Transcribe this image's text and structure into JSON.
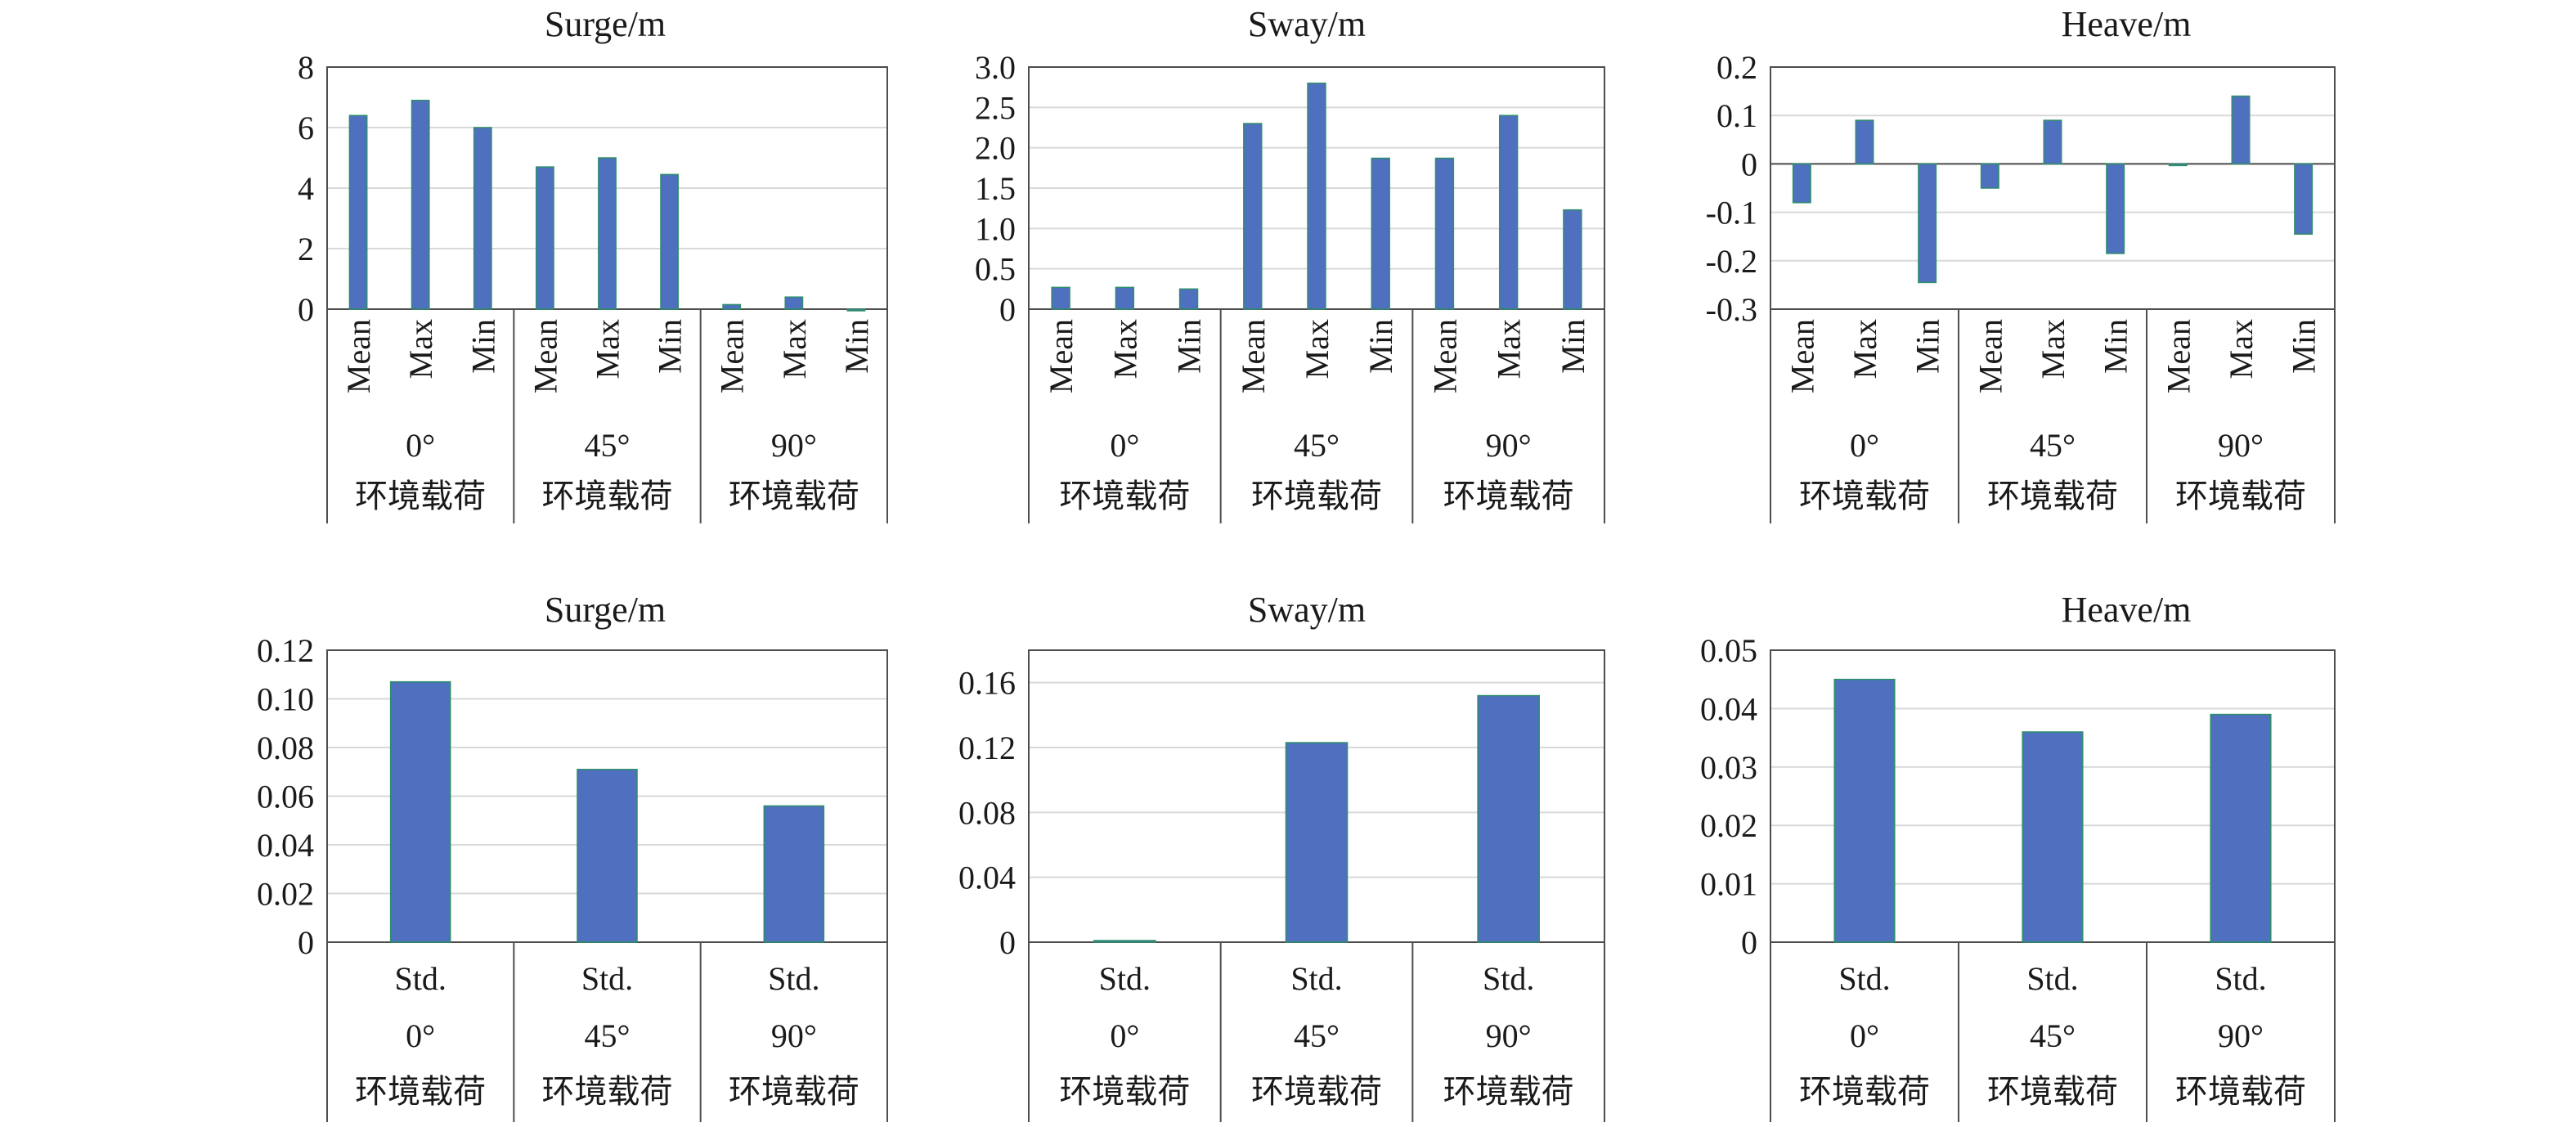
{
  "figure": {
    "panels": [
      {
        "title": "Surge/m"
      },
      {
        "title": "Sway/m"
      },
      {
        "title": "Heave/m"
      },
      {
        "title": "Surge/m"
      },
      {
        "title": "Sway/m"
      },
      {
        "title": "Heave/m"
      }
    ]
  },
  "chart_data": [
    {
      "type": "bar",
      "title": "Surge/m",
      "categories": [
        "Mean",
        "Max",
        "Min",
        "Mean",
        "Max",
        "Min",
        "Mean",
        "Max",
        "Min"
      ],
      "groups": [
        {
          "angle": "0°",
          "label": "环境载荷"
        },
        {
          "angle": "45°",
          "label": "环境载荷"
        },
        {
          "angle": "90°",
          "label": "环境载荷"
        }
      ],
      "values": [
        6.4,
        6.9,
        6.0,
        4.7,
        5.0,
        4.45,
        0.15,
        0.4,
        0
      ],
      "ylim": [
        0,
        8
      ],
      "yticks": [
        "0",
        "2",
        "4",
        "6",
        "8"
      ],
      "grid": true,
      "bar_color": "#4f6fbf"
    },
    {
      "type": "bar",
      "title": "Sway/m",
      "categories": [
        "Mean",
        "Max",
        "Min",
        "Mean",
        "Max",
        "Min",
        "Mean",
        "Max",
        "Min"
      ],
      "groups": [
        {
          "angle": "0°",
          "label": "环境载荷"
        },
        {
          "angle": "45°",
          "label": "环境载荷"
        },
        {
          "angle": "90°",
          "label": "环境载荷"
        }
      ],
      "values": [
        0.27,
        0.27,
        0.25,
        2.3,
        2.8,
        1.87,
        1.87,
        2.4,
        1.23
      ],
      "ylim": [
        0,
        3.0
      ],
      "yticks": [
        "0",
        "0.5",
        "1.0",
        "1.5",
        "2.0",
        "2.5",
        "3.0"
      ],
      "grid": true,
      "bar_color": "#4f6fbf"
    },
    {
      "type": "bar",
      "title": "Heave/m",
      "categories": [
        "Mean",
        "Max",
        "Min",
        "Mean",
        "Max",
        "Min",
        "Mean",
        "Max",
        "Min"
      ],
      "groups": [
        {
          "angle": "0°",
          "label": "环境载荷"
        },
        {
          "angle": "45°",
          "label": "环境载荷"
        },
        {
          "angle": "90°",
          "label": "环境载荷"
        }
      ],
      "values": [
        -0.08,
        0.09,
        -0.245,
        -0.05,
        0.09,
        -0.185,
        -0.003,
        0.14,
        -0.145
      ],
      "ylim": [
        -0.3,
        0.2
      ],
      "yticks": [
        "-0.3",
        "-0.2",
        "-0.1",
        "0",
        "0.1",
        "0.2"
      ],
      "grid": true,
      "bar_color": "#4f6fbf"
    },
    {
      "type": "bar",
      "title": "Surge/m",
      "categories": [
        "Std.",
        "Std.",
        "Std."
      ],
      "groups": [
        {
          "angle": "0°",
          "label": "环境载荷"
        },
        {
          "angle": "45°",
          "label": "环境载荷"
        },
        {
          "angle": "90°",
          "label": "环境载荷"
        }
      ],
      "values": [
        0.107,
        0.071,
        0.056
      ],
      "ylim": [
        0,
        0.12
      ],
      "yticks": [
        "0",
        "0.02",
        "0.04",
        "0.06",
        "0.08",
        "0.10",
        "0.12"
      ],
      "grid": true,
      "bar_color": "#4f6fbf"
    },
    {
      "type": "bar",
      "title": "Sway/m",
      "categories": [
        "Std.",
        "Std.",
        "Std."
      ],
      "groups": [
        {
          "angle": "0°",
          "label": "环境载荷"
        },
        {
          "angle": "45°",
          "label": "环境载荷"
        },
        {
          "angle": "90°",
          "label": "环境载荷"
        }
      ],
      "values": [
        0.001,
        0.123,
        0.152
      ],
      "ylim": [
        0,
        0.18
      ],
      "yticks": [
        "0",
        "0.04",
        "0.08",
        "0.12",
        "0.16"
      ],
      "grid": true,
      "bar_color": "#4f6fbf"
    },
    {
      "type": "bar",
      "title": "Heave/m",
      "categories": [
        "Std.",
        "Std.",
        "Std."
      ],
      "groups": [
        {
          "angle": "0°",
          "label": "环境载荷"
        },
        {
          "angle": "45°",
          "label": "环境载荷"
        },
        {
          "angle": "90°",
          "label": "环境载荷"
        }
      ],
      "values": [
        0.045,
        0.036,
        0.039
      ],
      "ylim": [
        0,
        0.05
      ],
      "yticks": [
        "0",
        "0.01",
        "0.02",
        "0.03",
        "0.04",
        "0.05"
      ],
      "grid": true,
      "bar_color": "#4f6fbf"
    }
  ]
}
